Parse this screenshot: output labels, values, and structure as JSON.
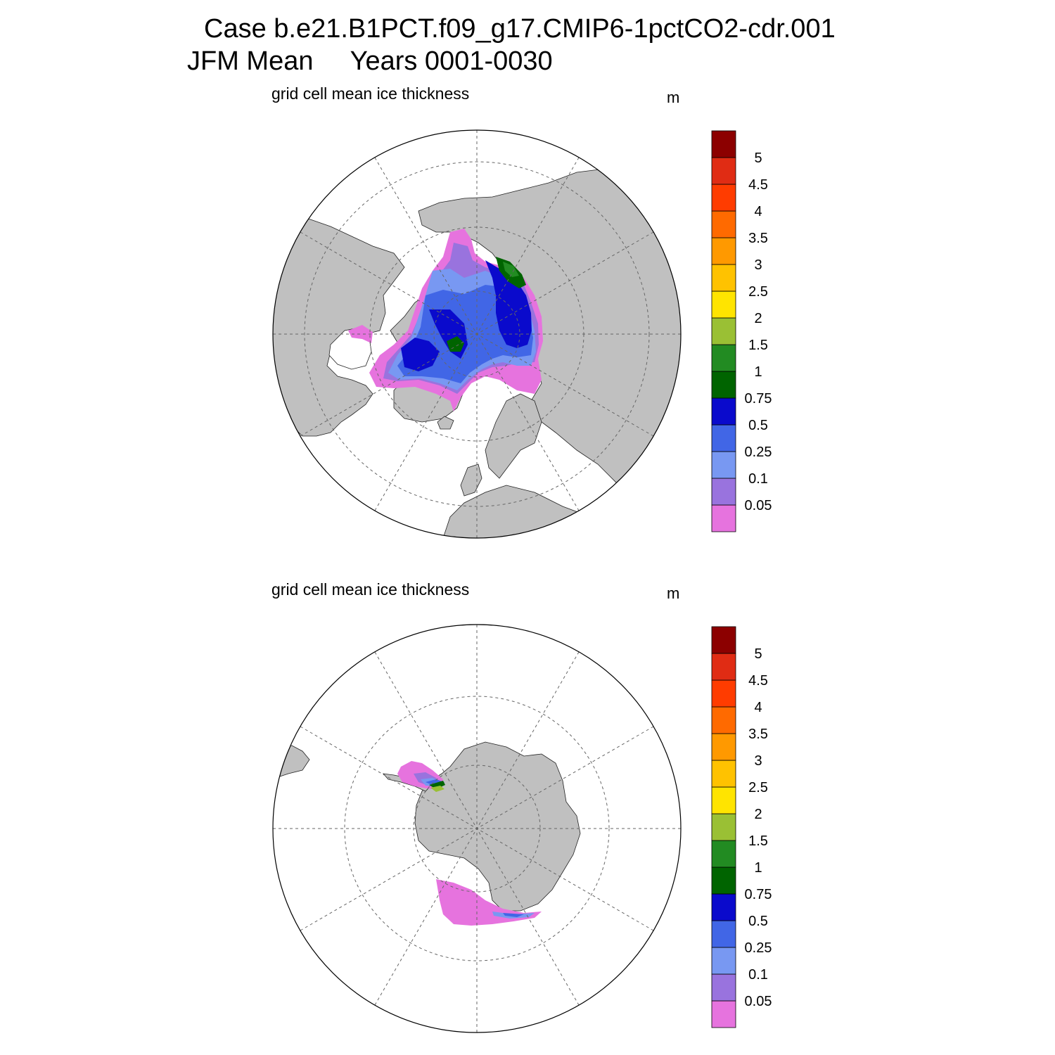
{
  "title": {
    "line1": "Case b.e21.B1PCT.f09_g17.CMIP6-1pctCO2-cdr.001",
    "line2": "JFM Mean     Years 0001-0030"
  },
  "colors": {
    "land": "#c0c0c0",
    "ocean": "#ffffff",
    "grid": "#666666",
    "levels": [
      "#e673de",
      "#9973de",
      "#7898f2",
      "#4166e6",
      "#0a0acc",
      "#006400",
      "#228b22",
      "#9ac034",
      "#ffe400",
      "#ffc200",
      "#ff9900",
      "#ff6a00",
      "#ff3c00",
      "#e02c14",
      "#8c0000"
    ]
  },
  "panels": [
    {
      "id": "arctic",
      "hemisphere": "NH",
      "title": "grid cell mean ice thickness",
      "units": "m",
      "colorbar_labels": [
        "0.05",
        "0.1",
        "0.25",
        "0.5",
        "0.75",
        "1",
        "1.5",
        "2",
        "2.5",
        "3",
        "3.5",
        "4",
        "4.5",
        "5"
      ]
    },
    {
      "id": "antarctic",
      "hemisphere": "SH",
      "title": "grid cell mean ice thickness",
      "units": "m",
      "colorbar_labels": [
        "0.05",
        "0.1",
        "0.25",
        "0.5",
        "0.75",
        "1",
        "1.5",
        "2",
        "2.5",
        "3",
        "3.5",
        "4",
        "4.5",
        "5"
      ]
    }
  ]
}
